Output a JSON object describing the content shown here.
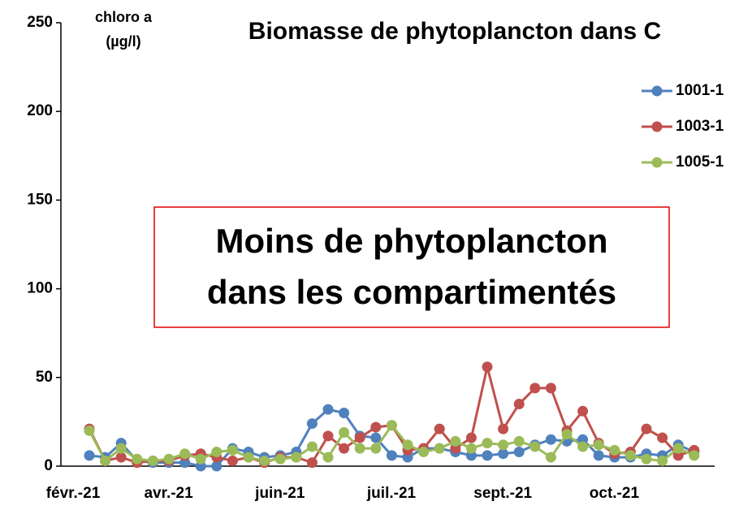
{
  "chart_data": {
    "type": "line",
    "title": "Biomasse de phytoplancton dans C",
    "ylabel": [
      "chloro a",
      "(µg/l)"
    ],
    "annotation": [
      "Moins de phytoplancton",
      "dans les compartimentés"
    ],
    "categories": [
      "févr.-21",
      null,
      null,
      null,
      null,
      null,
      "avr.-21",
      null,
      null,
      null,
      null,
      null,
      null,
      "juin-21",
      null,
      null,
      null,
      null,
      null,
      null,
      "juil.-21",
      null,
      null,
      null,
      null,
      null,
      null,
      "sept.-21",
      null,
      null,
      null,
      null,
      null,
      null,
      "oct.-21",
      null,
      null,
      null,
      null
    ],
    "series": [
      {
        "name": "1001-1",
        "color": "#4f81bd",
        "values": [
          6,
          5,
          13,
          3,
          2,
          2,
          2,
          0,
          0,
          10,
          8,
          5,
          6,
          8,
          24,
          32,
          30,
          17,
          16,
          6,
          5,
          10,
          10,
          8,
          6,
          6,
          7,
          8,
          12,
          15,
          14,
          15,
          6,
          5,
          5,
          7,
          6,
          12,
          8
        ]
      },
      {
        "name": "1003-1",
        "color": "#c0504d",
        "values": [
          21,
          3,
          5,
          2,
          3,
          3,
          6,
          7,
          5,
          3,
          5,
          2,
          5,
          5,
          2,
          17,
          10,
          16,
          22,
          23,
          9,
          10,
          21,
          10,
          16,
          56,
          21,
          35,
          44,
          44,
          20,
          31,
          13,
          7,
          8,
          21,
          16,
          6,
          9
        ]
      },
      {
        "name": "1005-1",
        "color": "#9bbb59",
        "values": [
          20,
          3,
          10,
          4,
          3,
          4,
          7,
          4,
          8,
          9,
          5,
          3,
          4,
          5,
          11,
          5,
          19,
          10,
          10,
          23,
          12,
          8,
          10,
          14,
          10,
          13,
          12,
          14,
          11,
          5,
          18,
          11,
          12,
          9,
          6,
          4,
          3,
          10,
          6
        ]
      }
    ],
    "ylim": [
      0,
      250
    ],
    "yticks": [
      0,
      50,
      100,
      150,
      200,
      250
    ],
    "grid": false,
    "legend": "upper right"
  }
}
